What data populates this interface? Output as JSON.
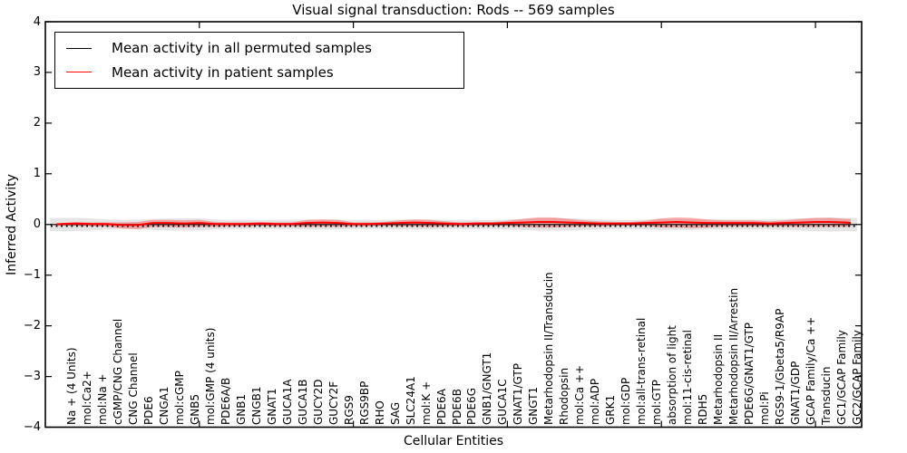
{
  "title": "Visual signal transduction: Rods -- 569 samples",
  "xlabel": "Cellular Entities",
  "ylabel": "Inferred Activity",
  "legend": {
    "permuted_label": "Mean activity in all permuted samples",
    "patient_label": "Mean activity in patient samples"
  },
  "colors": {
    "permuted_line": "#000000",
    "patient_line": "#ff0000",
    "permuted_band": "rgba(0,0,0,0.10)",
    "patient_band": "rgba(255,0,0,0.30)",
    "spine": "#000000"
  },
  "y_tick_labels": [
    "4",
    "3",
    "2",
    "1",
    "0",
    "−1",
    "−2",
    "−3",
    "−4"
  ],
  "chart_data": {
    "type": "line",
    "title": "Visual signal transduction: Rods -- 569 samples",
    "xlabel": "Cellular Entities",
    "ylabel": "Inferred Activity",
    "ylim": [
      -4,
      4
    ],
    "y_ticks": [
      4,
      3,
      2,
      1,
      0,
      -1,
      -2,
      -3,
      -4
    ],
    "x_major_tick_indices": [
      10,
      20,
      30,
      40,
      50
    ],
    "grid": false,
    "legend_position": "upper left",
    "categories": [
      "Na + (4 Units)",
      "mol:Ca2+",
      "mol:Na +",
      "cGMP/CNG Channel",
      "CNG Channel",
      "PDE6",
      "CNGA1",
      "mol:cGMP",
      "GNB5",
      "mol:GMP (4 units)",
      "PDE6A/B",
      "GNB1",
      "CNGB1",
      "GNAT1",
      "GUCA1A",
      "GUCA1B",
      "GUCY2D",
      "GUCY2F",
      "RGS9",
      "RGS9BP",
      "RHO",
      "SAG",
      "SLC24A1",
      "mol:K +",
      "PDE6A",
      "PDE6B",
      "PDE6G",
      "GNB1/GNGT1",
      "GUCA1C",
      "GNAT1/GTP",
      "GNGT1",
      "Metarhodopsin II/Transducin",
      "Rhodopsin",
      "mol:Ca ++",
      "mol:ADP",
      "GRK1",
      "mol:GDP",
      "mol:all-trans-retinal",
      "mol:GTP",
      "absorption of light",
      "mol:11-cis-retinal",
      "RDH5",
      "Metarhodopsin II",
      "Metarhodopsin II/Arrestin",
      "PDE6G/GNAT1/GTP",
      "mol:Pi",
      "RGS9-1/Gbeta5/R9AP",
      "GNAT1/GDP",
      "GCAP Family/Ca ++",
      "Transducin",
      "GC1/GCAP Family",
      "GC2/GCAP Family"
    ],
    "series": [
      {
        "name": "Mean activity in all permuted samples",
        "color": "#000000",
        "style": "dotted",
        "values": [
          0,
          0,
          0,
          0,
          0,
          0,
          0,
          0,
          0,
          0,
          0,
          0,
          0,
          0,
          0,
          0,
          0,
          0,
          0,
          0,
          0,
          0,
          0,
          0,
          0,
          0,
          0,
          0,
          0,
          0,
          0,
          0,
          0,
          0,
          0,
          0,
          0,
          0,
          0,
          0,
          0,
          0,
          0,
          0,
          0,
          0,
          0,
          0,
          0,
          0,
          0,
          0
        ],
        "band_halfwidth": [
          0.13,
          0.13,
          0.12,
          0.1,
          0.09,
          0.1,
          0.11,
          0.12,
          0.12,
          0.12,
          0.1,
          0.09,
          0.09,
          0.09,
          0.09,
          0.09,
          0.1,
          0.1,
          0.1,
          0.09,
          0.09,
          0.09,
          0.1,
          0.1,
          0.1,
          0.09,
          0.09,
          0.09,
          0.09,
          0.1,
          0.11,
          0.12,
          0.12,
          0.12,
          0.11,
          0.1,
          0.09,
          0.09,
          0.1,
          0.11,
          0.11,
          0.11,
          0.1,
          0.1,
          0.1,
          0.1,
          0.1,
          0.11,
          0.12,
          0.13,
          0.14,
          0.13
        ]
      },
      {
        "name": "Mean activity in patient samples",
        "color": "#ff0000",
        "style": "solid",
        "values": [
          0.0,
          0.01,
          0.0,
          0.0,
          -0.02,
          -0.02,
          0.02,
          0.02,
          0.01,
          0.02,
          0.0,
          0.0,
          0.0,
          0.01,
          0.0,
          0.0,
          0.02,
          0.03,
          0.02,
          0.0,
          0.0,
          0.01,
          0.02,
          0.03,
          0.02,
          0.01,
          0.0,
          0.01,
          0.01,
          0.02,
          0.03,
          0.04,
          0.04,
          0.03,
          0.02,
          0.01,
          0.01,
          0.01,
          0.02,
          0.03,
          0.04,
          0.03,
          0.02,
          0.02,
          0.02,
          0.02,
          0.01,
          0.02,
          0.03,
          0.04,
          0.04,
          0.03
        ],
        "band_halfwidth": [
          0.03,
          0.04,
          0.04,
          0.04,
          0.06,
          0.07,
          0.07,
          0.07,
          0.07,
          0.07,
          0.05,
          0.04,
          0.04,
          0.04,
          0.04,
          0.04,
          0.07,
          0.07,
          0.07,
          0.04,
          0.04,
          0.04,
          0.06,
          0.07,
          0.07,
          0.05,
          0.04,
          0.04,
          0.04,
          0.05,
          0.08,
          0.1,
          0.1,
          0.08,
          0.06,
          0.05,
          0.04,
          0.04,
          0.05,
          0.09,
          0.1,
          0.1,
          0.08,
          0.06,
          0.06,
          0.06,
          0.05,
          0.06,
          0.08,
          0.09,
          0.09,
          0.08
        ]
      }
    ]
  }
}
